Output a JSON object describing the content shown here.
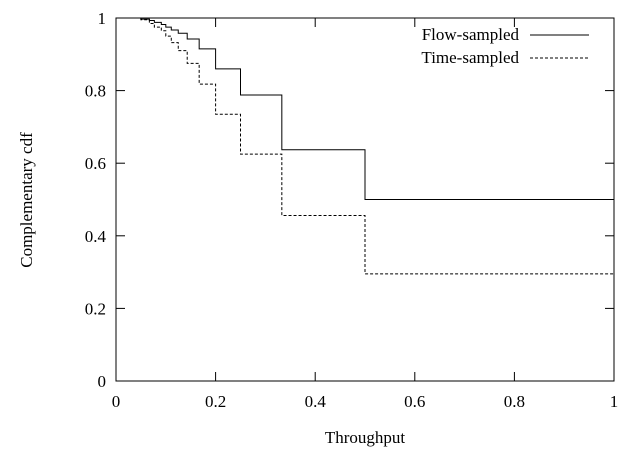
{
  "chart_data": {
    "type": "line",
    "title": "",
    "xlabel": "Throughput",
    "ylabel": "Complementary cdf",
    "xlim": [
      0,
      1
    ],
    "ylim": [
      0,
      1
    ],
    "xticks": [
      "0",
      "0.2",
      "0.4",
      "0.6",
      "0.8",
      "1"
    ],
    "yticks": [
      "0",
      "0.2",
      "0.4",
      "0.6",
      "0.8",
      "1"
    ],
    "grid": false,
    "legend_position": "top-right",
    "series": [
      {
        "name": "Flow-sampled",
        "style": "solid",
        "color": "#000000",
        "points": [
          [
            0,
            1
          ],
          [
            0.05,
            1
          ],
          [
            0.05,
            0.997
          ],
          [
            0.067,
            0.997
          ],
          [
            0.067,
            0.993
          ],
          [
            0.077,
            0.993
          ],
          [
            0.077,
            0.988
          ],
          [
            0.091,
            0.988
          ],
          [
            0.091,
            0.982
          ],
          [
            0.1,
            0.982
          ],
          [
            0.1,
            0.975
          ],
          [
            0.111,
            0.975
          ],
          [
            0.111,
            0.967
          ],
          [
            0.125,
            0.967
          ],
          [
            0.125,
            0.958
          ],
          [
            0.143,
            0.958
          ],
          [
            0.143,
            0.942
          ],
          [
            0.167,
            0.942
          ],
          [
            0.167,
            0.915
          ],
          [
            0.2,
            0.915
          ],
          [
            0.2,
            0.86
          ],
          [
            0.25,
            0.86
          ],
          [
            0.25,
            0.788
          ],
          [
            0.333,
            0.788
          ],
          [
            0.333,
            0.637
          ],
          [
            0.5,
            0.637
          ],
          [
            0.5,
            0.5
          ],
          [
            1,
            0.5
          ]
        ]
      },
      {
        "name": "Time-sampled",
        "style": "dashed",
        "color": "#000000",
        "points": [
          [
            0,
            1
          ],
          [
            0.05,
            1
          ],
          [
            0.05,
            0.995
          ],
          [
            0.067,
            0.995
          ],
          [
            0.067,
            0.985
          ],
          [
            0.077,
            0.985
          ],
          [
            0.077,
            0.975
          ],
          [
            0.091,
            0.975
          ],
          [
            0.091,
            0.965
          ],
          [
            0.1,
            0.965
          ],
          [
            0.1,
            0.95
          ],
          [
            0.111,
            0.95
          ],
          [
            0.111,
            0.932
          ],
          [
            0.125,
            0.932
          ],
          [
            0.125,
            0.91
          ],
          [
            0.143,
            0.91
          ],
          [
            0.143,
            0.875
          ],
          [
            0.167,
            0.875
          ],
          [
            0.167,
            0.818
          ],
          [
            0.2,
            0.818
          ],
          [
            0.2,
            0.735
          ],
          [
            0.25,
            0.735
          ],
          [
            0.25,
            0.625
          ],
          [
            0.333,
            0.625
          ],
          [
            0.333,
            0.456
          ],
          [
            0.5,
            0.456
          ],
          [
            0.5,
            0.295
          ],
          [
            1,
            0.295
          ]
        ]
      }
    ]
  }
}
